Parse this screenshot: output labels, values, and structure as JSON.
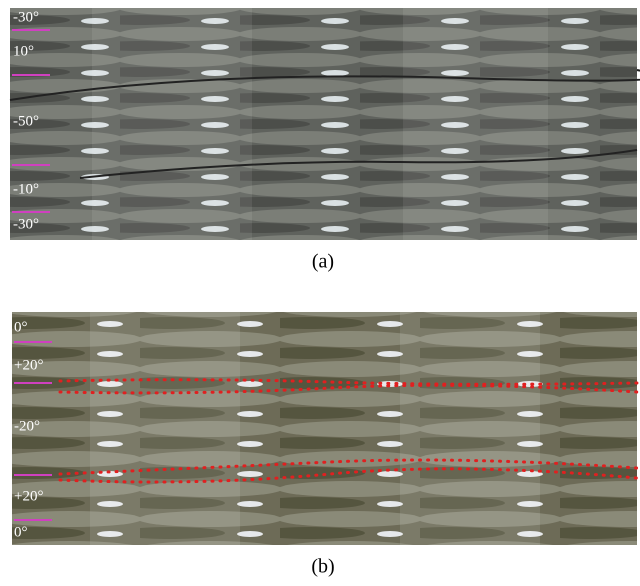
{
  "panel_a": {
    "layer_labels": [
      "-30°",
      "10°",
      "-50°",
      "-10°",
      "-30°"
    ],
    "caption": "(a)"
  },
  "panel_b": {
    "layer_labels": [
      "0°",
      "+20°",
      "-20°",
      "+20°",
      "0°"
    ],
    "caption": "(b)"
  }
}
